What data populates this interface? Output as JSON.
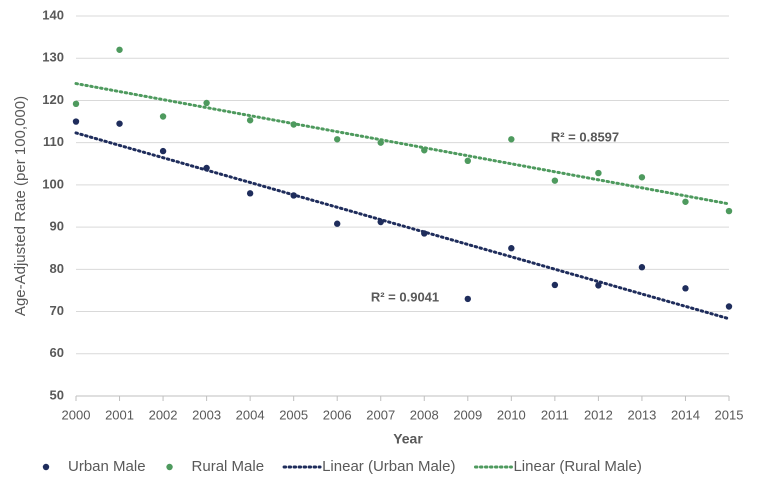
{
  "chart_data": {
    "type": "scatter",
    "x_label": "Year",
    "y_label": "Age-Adjusted Rate (per 100,000)",
    "x": [
      2000,
      2001,
      2002,
      2003,
      2004,
      2005,
      2006,
      2007,
      2008,
      2009,
      2010,
      2011,
      2012,
      2013,
      2014,
      2015
    ],
    "series": [
      {
        "name": "Urban Male",
        "color": "#1f2d5c",
        "values": [
          115,
          114.5,
          108,
          104,
          98,
          97.5,
          90.8,
          91.2,
          88.5,
          73,
          85,
          76.3,
          76.2,
          80.5,
          75.5,
          71.2
        ]
      },
      {
        "name": "Rural Male",
        "color": "#4e9a5e",
        "values": [
          119.2,
          132,
          116.2,
          119.4,
          115.3,
          114.3,
          110.8,
          110,
          108.2,
          105.7,
          110.8,
          101,
          102.8,
          101.8,
          96,
          93.8
        ]
      },
      {
        "name": "Linear (Urban Male)",
        "color": "#1f2d5c",
        "style": "dotted",
        "x": [
          2000,
          2015
        ],
        "values": [
          112.3,
          68.3
        ]
      },
      {
        "name": "Linear (Rural Male)",
        "color": "#4e9a5e",
        "style": "dotted",
        "x": [
          2000,
          2015
        ],
        "values": [
          124,
          95.5
        ]
      }
    ],
    "annotations": [
      "R² = 0.8597",
      "R² = 0.9041"
    ],
    "xlim": [
      2000,
      2015
    ],
    "xticks": [
      2000,
      2001,
      2002,
      2003,
      2004,
      2005,
      2006,
      2007,
      2008,
      2009,
      2010,
      2011,
      2012,
      2013,
      2014,
      2015
    ],
    "ylim": [
      50,
      140
    ],
    "yticks": [
      50,
      60,
      70,
      80,
      90,
      100,
      110,
      120,
      130,
      140
    ],
    "grid": true,
    "legend": "bottom"
  }
}
